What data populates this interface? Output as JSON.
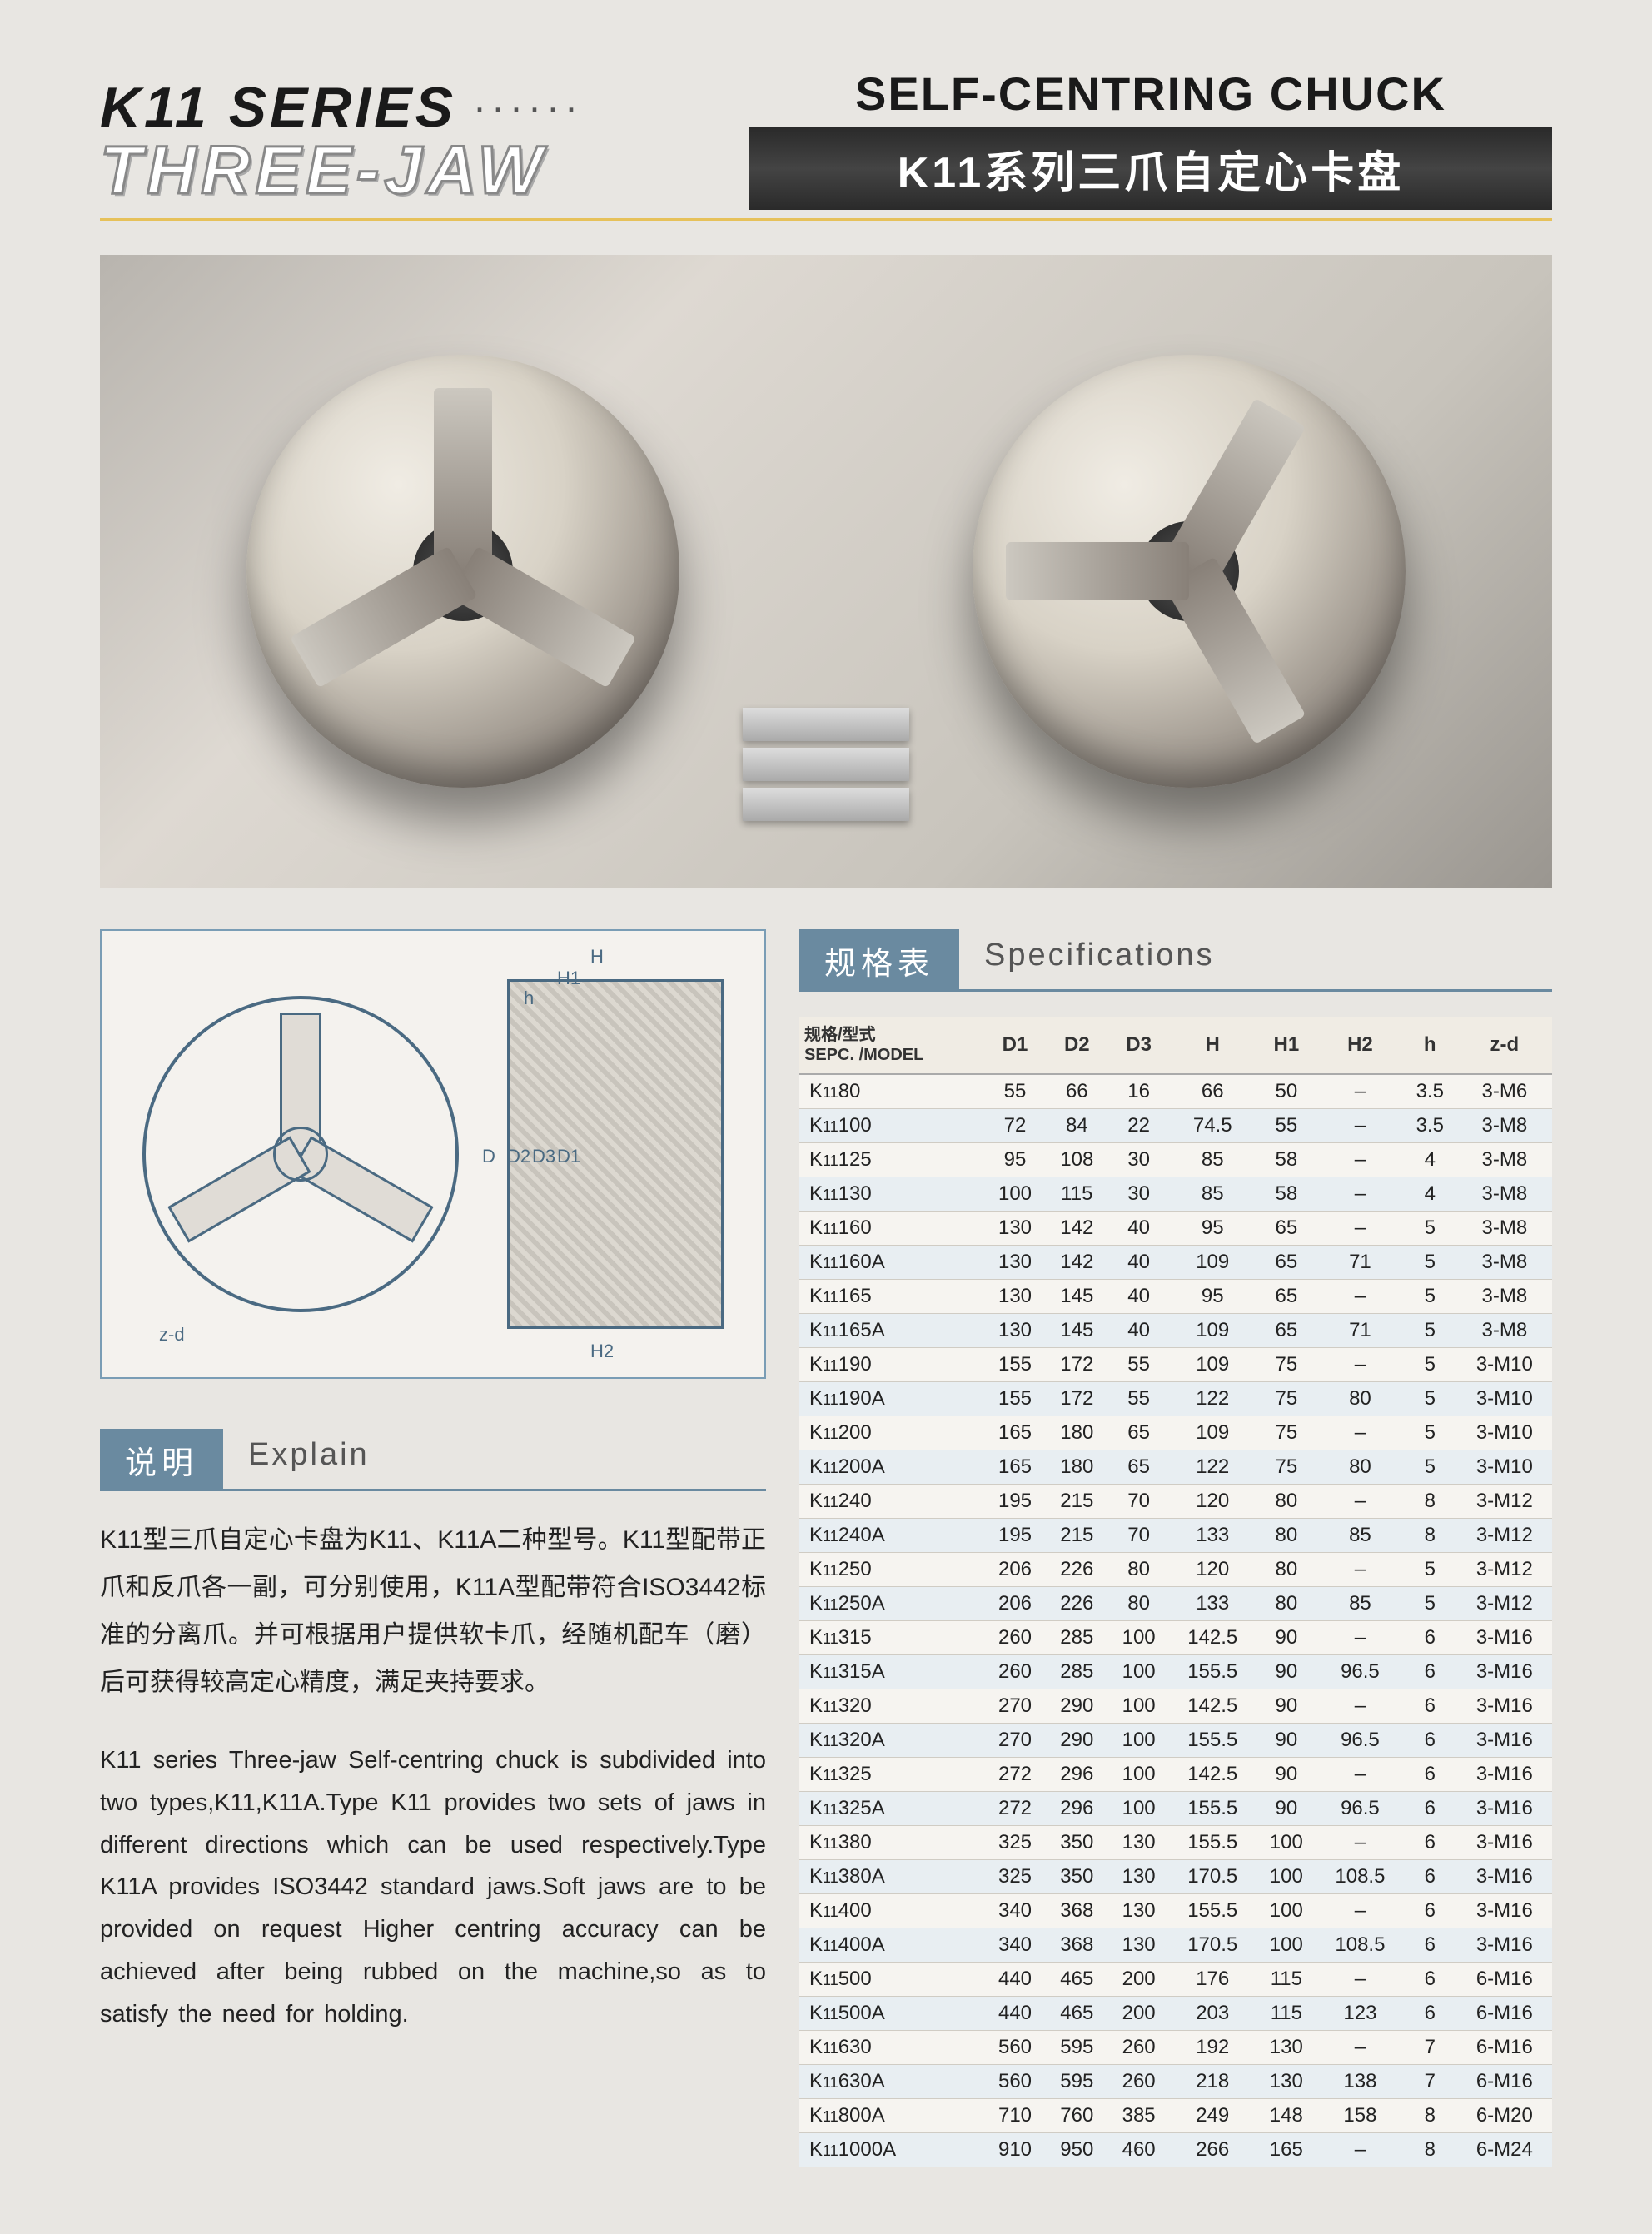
{
  "header": {
    "series": "K11 SERIES",
    "dots": "······",
    "three_jaw": "THREE-JAW",
    "eng_title": "SELF-CENTRING CHUCK",
    "cn_title": "K11系列三爪自定心卡盘"
  },
  "diagram_labels": {
    "H": "H",
    "H1": "H1",
    "h": "h",
    "D": "D",
    "D2": "D2",
    "D3": "D3",
    "D1": "D1",
    "H2": "H2",
    "zd": "z-d"
  },
  "explain_section": {
    "cn": "说明",
    "en": "Explain"
  },
  "spec_section": {
    "cn": "规格表",
    "en": "Specifications"
  },
  "explain_cn": "K11型三爪自定心卡盘为K11、K11A二种型号。K11型配带正爪和反爪各一副，可分别使用，K11A型配带符合ISO3442标准的分离爪。并可根据用户提供软卡爪，经随机配车（磨）后可获得较高定心精度，满足夹持要求。",
  "explain_en": "K11 series Three-jaw Self-centring chuck is subdivided into two types,K11,K11A.Type K11 provides two sets of jaws in different directions which can be used respectively.Type K11A provides ISO3442 standard jaws.Soft jaws are to be provided on request Higher centring accuracy can be achieved after being rubbed on the machine,so as to satisfy the need for holding.",
  "spec_headers_model_line1": "规格/型式",
  "spec_headers_model_line2": "SEPC. /MODEL",
  "spec_columns": [
    "D1",
    "D2",
    "D3",
    "H",
    "H1",
    "H2",
    "h",
    "z-d"
  ],
  "spec_rows": [
    {
      "model_pre": "K",
      "model_sub": "11",
      "model_suf": "80",
      "v": [
        "55",
        "66",
        "16",
        "66",
        "50",
        "–",
        "3.5",
        "3-M6"
      ]
    },
    {
      "model_pre": "K",
      "model_sub": "11",
      "model_suf": "100",
      "v": [
        "72",
        "84",
        "22",
        "74.5",
        "55",
        "–",
        "3.5",
        "3-M8"
      ]
    },
    {
      "model_pre": "K",
      "model_sub": "11",
      "model_suf": "125",
      "v": [
        "95",
        "108",
        "30",
        "85",
        "58",
        "–",
        "4",
        "3-M8"
      ]
    },
    {
      "model_pre": "K",
      "model_sub": "11",
      "model_suf": "130",
      "v": [
        "100",
        "115",
        "30",
        "85",
        "58",
        "–",
        "4",
        "3-M8"
      ]
    },
    {
      "model_pre": "K",
      "model_sub": "11",
      "model_suf": "160",
      "v": [
        "130",
        "142",
        "40",
        "95",
        "65",
        "–",
        "5",
        "3-M8"
      ]
    },
    {
      "model_pre": "K",
      "model_sub": "11",
      "model_suf": "160A",
      "v": [
        "130",
        "142",
        "40",
        "109",
        "65",
        "71",
        "5",
        "3-M8"
      ]
    },
    {
      "model_pre": "K",
      "model_sub": "11",
      "model_suf": "165",
      "v": [
        "130",
        "145",
        "40",
        "95",
        "65",
        "–",
        "5",
        "3-M8"
      ]
    },
    {
      "model_pre": "K",
      "model_sub": "11",
      "model_suf": "165A",
      "v": [
        "130",
        "145",
        "40",
        "109",
        "65",
        "71",
        "5",
        "3-M8"
      ]
    },
    {
      "model_pre": "K",
      "model_sub": "11",
      "model_suf": "190",
      "v": [
        "155",
        "172",
        "55",
        "109",
        "75",
        "–",
        "5",
        "3-M10"
      ]
    },
    {
      "model_pre": "K",
      "model_sub": "11",
      "model_suf": "190A",
      "v": [
        "155",
        "172",
        "55",
        "122",
        "75",
        "80",
        "5",
        "3-M10"
      ]
    },
    {
      "model_pre": "K",
      "model_sub": "11",
      "model_suf": "200",
      "v": [
        "165",
        "180",
        "65",
        "109",
        "75",
        "–",
        "5",
        "3-M10"
      ]
    },
    {
      "model_pre": "K",
      "model_sub": "11",
      "model_suf": "200A",
      "v": [
        "165",
        "180",
        "65",
        "122",
        "75",
        "80",
        "5",
        "3-M10"
      ]
    },
    {
      "model_pre": "K",
      "model_sub": "11",
      "model_suf": "240",
      "v": [
        "195",
        "215",
        "70",
        "120",
        "80",
        "–",
        "8",
        "3-M12"
      ]
    },
    {
      "model_pre": "K",
      "model_sub": "11",
      "model_suf": "240A",
      "v": [
        "195",
        "215",
        "70",
        "133",
        "80",
        "85",
        "8",
        "3-M12"
      ]
    },
    {
      "model_pre": "K",
      "model_sub": "11",
      "model_suf": "250",
      "v": [
        "206",
        "226",
        "80",
        "120",
        "80",
        "–",
        "5",
        "3-M12"
      ]
    },
    {
      "model_pre": "K",
      "model_sub": "11",
      "model_suf": "250A",
      "v": [
        "206",
        "226",
        "80",
        "133",
        "80",
        "85",
        "5",
        "3-M12"
      ]
    },
    {
      "model_pre": "K",
      "model_sub": "11",
      "model_suf": "315",
      "v": [
        "260",
        "285",
        "100",
        "142.5",
        "90",
        "–",
        "6",
        "3-M16"
      ]
    },
    {
      "model_pre": "K",
      "model_sub": "11",
      "model_suf": "315A",
      "v": [
        "260",
        "285",
        "100",
        "155.5",
        "90",
        "96.5",
        "6",
        "3-M16"
      ]
    },
    {
      "model_pre": "K",
      "model_sub": "11",
      "model_suf": "320",
      "v": [
        "270",
        "290",
        "100",
        "142.5",
        "90",
        "–",
        "6",
        "3-M16"
      ]
    },
    {
      "model_pre": "K",
      "model_sub": "11",
      "model_suf": "320A",
      "v": [
        "270",
        "290",
        "100",
        "155.5",
        "90",
        "96.5",
        "6",
        "3-M16"
      ]
    },
    {
      "model_pre": "K",
      "model_sub": "11",
      "model_suf": "325",
      "v": [
        "272",
        "296",
        "100",
        "142.5",
        "90",
        "–",
        "6",
        "3-M16"
      ]
    },
    {
      "model_pre": "K",
      "model_sub": "11",
      "model_suf": "325A",
      "v": [
        "272",
        "296",
        "100",
        "155.5",
        "90",
        "96.5",
        "6",
        "3-M16"
      ]
    },
    {
      "model_pre": "K",
      "model_sub": "11",
      "model_suf": "380",
      "v": [
        "325",
        "350",
        "130",
        "155.5",
        "100",
        "–",
        "6",
        "3-M16"
      ]
    },
    {
      "model_pre": "K",
      "model_sub": "11",
      "model_suf": "380A",
      "v": [
        "325",
        "350",
        "130",
        "170.5",
        "100",
        "108.5",
        "6",
        "3-M16"
      ]
    },
    {
      "model_pre": "K",
      "model_sub": "11",
      "model_suf": "400",
      "v": [
        "340",
        "368",
        "130",
        "155.5",
        "100",
        "–",
        "6",
        "3-M16"
      ]
    },
    {
      "model_pre": "K",
      "model_sub": "11",
      "model_suf": "400A",
      "v": [
        "340",
        "368",
        "130",
        "170.5",
        "100",
        "108.5",
        "6",
        "3-M16"
      ]
    },
    {
      "model_pre": "K",
      "model_sub": "11",
      "model_suf": "500",
      "v": [
        "440",
        "465",
        "200",
        "176",
        "115",
        "–",
        "6",
        "6-M16"
      ]
    },
    {
      "model_pre": "K",
      "model_sub": "11",
      "model_suf": "500A",
      "v": [
        "440",
        "465",
        "200",
        "203",
        "115",
        "123",
        "6",
        "6-M16"
      ]
    },
    {
      "model_pre": "K",
      "model_sub": "11",
      "model_suf": "630",
      "v": [
        "560",
        "595",
        "260",
        "192",
        "130",
        "–",
        "7",
        "6-M16"
      ]
    },
    {
      "model_pre": "K",
      "model_sub": "11",
      "model_suf": "630A",
      "v": [
        "560",
        "595",
        "260",
        "218",
        "130",
        "138",
        "7",
        "6-M16"
      ]
    },
    {
      "model_pre": "K",
      "model_sub": "11",
      "model_suf": "800A",
      "v": [
        "710",
        "760",
        "385",
        "249",
        "148",
        "158",
        "8",
        "6-M20"
      ]
    },
    {
      "model_pre": "K",
      "model_sub": "11",
      "model_suf": "1000A",
      "v": [
        "910",
        "950",
        "460",
        "266",
        "165",
        "–",
        "8",
        "6-M24"
      ]
    }
  ]
}
